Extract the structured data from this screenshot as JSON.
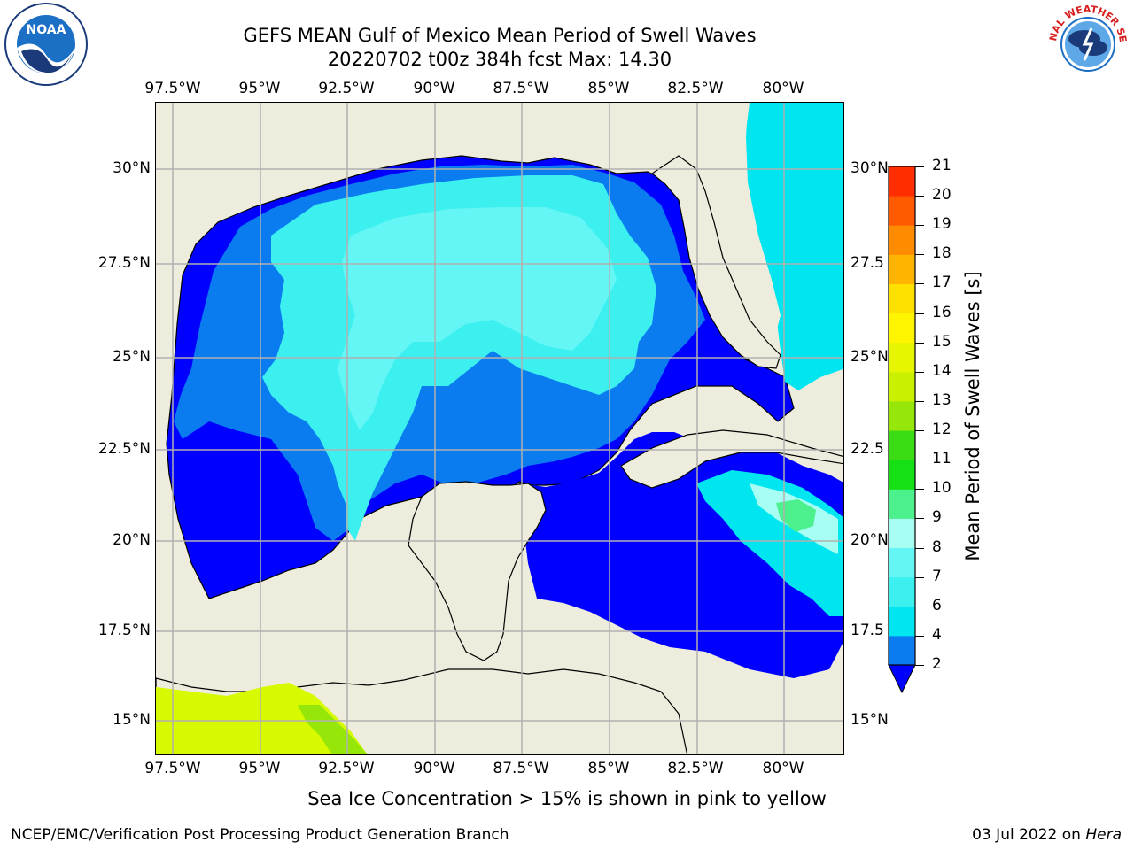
{
  "title": {
    "line1": "GEFS MEAN Gulf of Mexico Mean Period of Swell Waves",
    "line2": "20220702 t00z 384h fcst   Max: 14.30"
  },
  "map": {
    "lon_labels": [
      "97.5°W",
      "95°W",
      "92.5°W",
      "90°W",
      "87.5°W",
      "85°W",
      "82.5°W",
      "80°W"
    ],
    "lat_labels_left": [
      "30°N",
      "27.5°N",
      "25°N",
      "22.5°N",
      "20°N",
      "17.5°N",
      "15°N"
    ],
    "lat_labels_right": [
      "30°N",
      "27.5",
      "25°N",
      "22.5",
      "20°N",
      "17.5",
      "15°N"
    ],
    "land_color": "#eeecdc",
    "grid_color": "#b0b0b0"
  },
  "colorbar": {
    "label": "Mean Period of Swell Waves [s]",
    "ticks": [
      "2",
      "4",
      "6",
      "7",
      "8",
      "9",
      "10",
      "11",
      "12",
      "13",
      "14",
      "15",
      "16",
      "17",
      "18",
      "19",
      "20",
      "21"
    ],
    "colors": [
      "#0a7cf0",
      "#00e6f0",
      "#3cf0f0",
      "#64f5f5",
      "#a6fff2",
      "#4cf08c",
      "#14e014",
      "#3cdc14",
      "#96e60a",
      "#c8f000",
      "#e6f500",
      "#fff500",
      "#ffe100",
      "#ffb400",
      "#ff8c00",
      "#ff5a00",
      "#ff2d00",
      "#ff0000"
    ],
    "under_color": "#0000ff"
  },
  "footnote": "Sea Ice Concentration > 15% is shown in pink to yellow",
  "credit": "NCEP/EMC/Verification Post Processing Product Generation Branch",
  "date": {
    "text": "03 Jul 2022 on ",
    "machine": "Hera"
  },
  "logos": {
    "left": "NOAA",
    "right_text": "NATIONAL WEATHER SERVICE"
  }
}
